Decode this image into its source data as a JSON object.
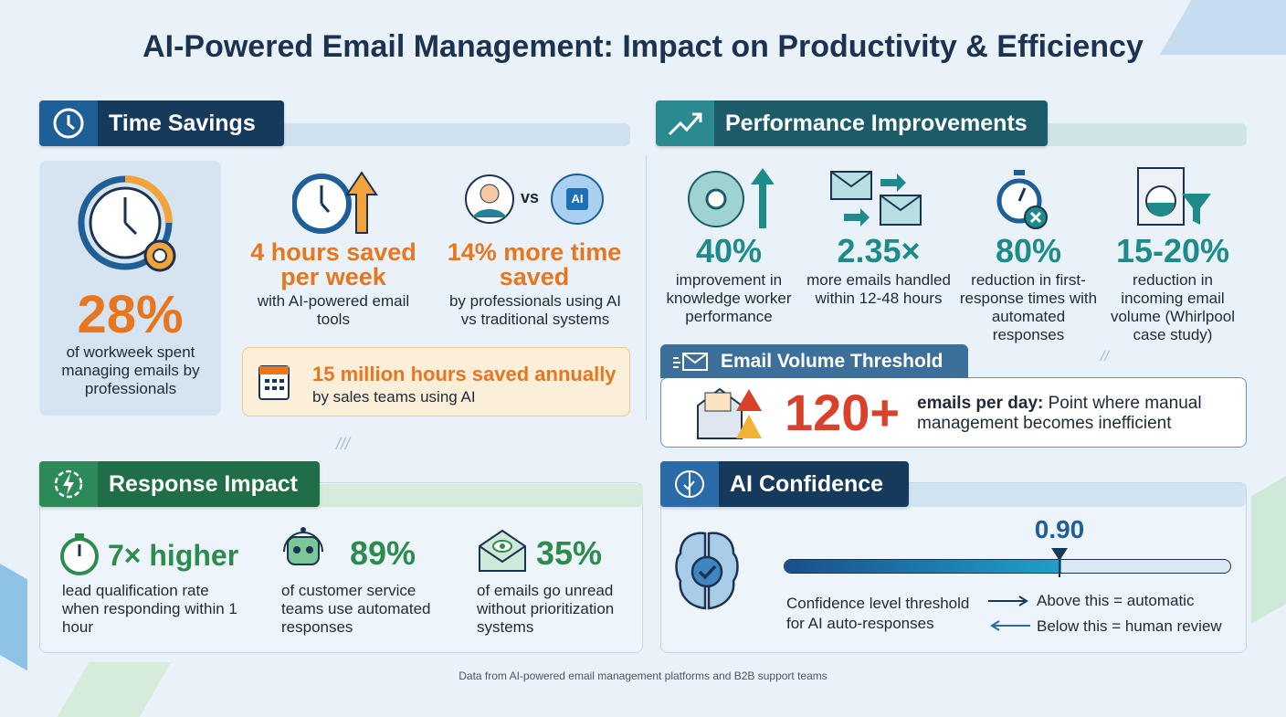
{
  "title": "AI-Powered Email Management: Impact on Productivity & Efficiency",
  "colors": {
    "orange": "#e8761e",
    "teal": "#1f8a8a",
    "green": "#2e8b4f",
    "red": "#d9412b",
    "navy": "#163a5c"
  },
  "time_savings": {
    "header": "Time Savings",
    "icon": "clock-icon",
    "main": {
      "value": "28%",
      "text": "of workweek spent managing emails by professionals",
      "icon": "clock-gear-icon"
    },
    "items": [
      {
        "value": "4 hours saved per week",
        "text": "with AI-powered email tools",
        "icon": "clock-arrow-up-icon"
      },
      {
        "value": "14% more time saved",
        "text": "by professionals using AI vs traditional systems",
        "icon": "person-vs-ai-brain-icon",
        "vs": "vs",
        "ai_badge": "AI"
      }
    ],
    "callout": {
      "value": "15 million hours saved annually",
      "text": "by sales teams using AI",
      "icon": "calendar-icon"
    }
  },
  "performance": {
    "header": "Performance Improvements",
    "icon": "trend-up-icon",
    "items": [
      {
        "value": "40%",
        "text": "improvement in knowledge worker performance",
        "icon": "brain-gear-arrow-icon"
      },
      {
        "value": "2.35×",
        "text": "more emails handled within 12-48 hours",
        "icon": "emails-forward-icon"
      },
      {
        "value": "80%",
        "text": "reduction in first-response times with automated responses",
        "icon": "stopwatch-x-icon"
      },
      {
        "value": "15-20%",
        "text": "reduction in incoming email volume (Whirlpool case study)",
        "icon": "washer-filter-icon"
      }
    ]
  },
  "email_volume": {
    "header": "Email Volume Threshold",
    "value": "120+",
    "bold": "emails per day:",
    "text": "Point where manual management becomes inefficient"
  },
  "response": {
    "header": "Response Impact",
    "icon": "lightning-icon",
    "items": [
      {
        "value": "7× higher",
        "text": "lead qualification rate when responding within 1 hour",
        "icon": "stopwatch-icon"
      },
      {
        "value": "89%",
        "text": "of customer service teams use automated responses",
        "icon": "robot-headset-icon"
      },
      {
        "value": "35%",
        "text": "of emails go unread without prioritization systems",
        "icon": "envelope-eye-icon"
      }
    ]
  },
  "ai_confidence": {
    "header": "AI Confidence",
    "threshold_label": "0.90",
    "threshold": 0.9,
    "desc": "Confidence level threshold for AI auto-responses",
    "above": "Above this = automatic",
    "below": "Below this = human review"
  },
  "footer": "Data from AI-powered email management platforms and B2B support teams"
}
